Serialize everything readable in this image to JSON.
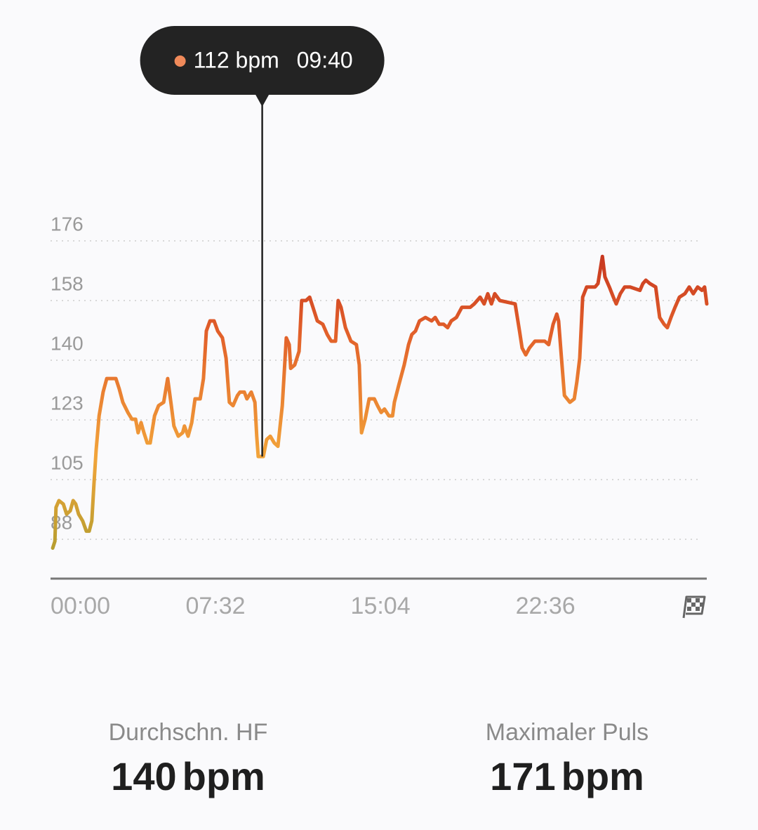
{
  "chart_data": {
    "type": "line",
    "x": [
      6,
      12,
      15,
      23,
      35,
      44,
      54,
      62,
      69,
      77,
      88,
      98,
      106,
      113,
      119,
      125,
      133,
      144,
      154,
      179,
      188,
      198,
      212,
      223,
      233,
      240,
      248,
      256,
      265,
      273,
      285,
      296,
      310,
      321,
      331,
      338,
      350,
      362,
      367,
      377,
      387,
      396,
      410,
      419,
      427,
      437,
      448,
      458,
      471,
      481,
      490,
      500,
      512,
      519,
      531,
      538,
      550,
      560,
      565,
      569,
      583,
      592,
      602,
      613,
      623,
      635,
      646,
      654,
      658,
      669,
      681,
      688,
      700,
      710,
      719,
      731,
      746,
      758,
      769,
      781,
      788,
      796,
      808,
      823,
      838,
      846,
      852,
      862,
      873,
      887,
      896,
      906,
      915,
      927,
      937,
      942,
      954,
      969,
      981,
      990,
      1000,
      1011,
      1027,
      1044,
      1054,
      1065,
      1077,
      1088,
      1098,
      1112,
      1127,
      1137,
      1150,
      1161,
      1177,
      1188,
      1198,
      1208,
      1217,
      1231,
      1273,
      1285,
      1292,
      1302,
      1312,
      1327,
      1354,
      1365,
      1377,
      1387,
      1392,
      1400,
      1408,
      1423,
      1435,
      1442,
      1450,
      1458,
      1469,
      1492,
      1500,
      1512,
      1519,
      1531,
      1542,
      1550,
      1561,
      1573,
      1588,
      1615,
      1623,
      1631,
      1642,
      1658,
      1669,
      1681,
      1690,
      1700,
      1711,
      1723,
      1738,
      1750,
      1761,
      1773,
      1785,
      1792,
      1798
    ],
    "values": [
      85,
      87,
      97,
      99,
      98,
      95,
      96,
      99,
      98,
      95,
      93,
      90,
      90,
      93,
      104,
      114,
      124,
      131,
      135,
      135,
      132,
      128,
      125,
      123,
      123,
      119,
      122,
      119,
      116,
      116,
      124,
      127,
      128,
      135,
      127,
      121,
      118,
      119,
      121,
      118,
      122,
      129,
      129,
      135,
      149,
      152,
      152,
      149,
      147,
      141,
      128,
      127,
      130,
      131,
      131,
      129,
      131,
      128,
      118,
      112,
      112,
      117,
      118,
      116,
      115,
      127,
      147,
      145,
      138,
      139,
      143,
      158,
      158,
      159,
      156,
      152,
      151,
      148,
      146,
      146,
      158,
      156,
      150,
      146,
      145,
      139,
      119,
      123,
      129,
      129,
      127,
      125,
      126,
      124,
      124,
      128,
      133,
      139,
      145,
      148,
      149,
      152,
      153,
      152,
      153,
      151,
      151,
      150,
      152,
      153,
      156,
      156,
      156,
      157,
      159,
      157,
      160,
      157,
      160,
      158,
      157,
      149,
      144,
      142,
      144,
      146,
      146,
      145,
      151,
      154,
      152,
      141,
      130,
      128,
      129,
      134,
      141,
      159,
      162,
      162,
      163,
      171,
      165,
      162,
      159,
      157,
      160,
      162,
      162,
      161,
      163,
      164,
      163,
      162,
      153,
      151,
      150,
      153,
      156,
      159,
      160,
      162,
      160,
      162,
      161,
      162,
      157
    ],
    "colors": [
      "#a49c2c",
      "#f2a43a",
      "#e2602a",
      "#b8201a"
    ],
    "xlim": [
      0,
      1798
    ],
    "ylim": [
      76,
      184.5
    ],
    "xticks": [
      {
        "value": 0,
        "label": "00:00"
      },
      {
        "value": 452,
        "label": "07:32"
      },
      {
        "value": 904,
        "label": "15:04"
      },
      {
        "value": 1356,
        "label": "22:36"
      }
    ],
    "yticks": [
      {
        "value": 87.6,
        "label": "88"
      },
      {
        "value": 105.2,
        "label": "105"
      },
      {
        "value": 122.8,
        "label": "123"
      },
      {
        "value": 140.4,
        "label": "140"
      },
      {
        "value": 158,
        "label": "158"
      },
      {
        "value": 175.6,
        "label": "176"
      }
    ],
    "grid": true,
    "tooltip": {
      "x": {
        "value": 580,
        "label": "09:40"
      },
      "y": {
        "value": 112,
        "label": "112 bpm"
      },
      "color": "#f08a5a"
    }
  },
  "stats": [
    {
      "label": "Durchschn. HF",
      "value": "140",
      "unit": "bpm"
    },
    {
      "label": "Maximaler Puls",
      "value": "171",
      "unit": "bpm"
    }
  ]
}
